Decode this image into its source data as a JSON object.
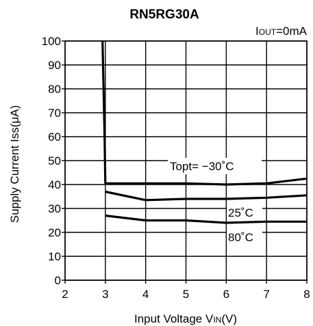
{
  "chart_data": {
    "type": "line",
    "title": "RN5RG30A",
    "condition": {
      "main": "I",
      "sub": "OUT",
      "rest": "=0mA"
    },
    "xlabel": {
      "main": "Input Voltage V",
      "sub": "IN",
      "rest": "(V)"
    },
    "ylabel": "Supply Current Iss(μA)",
    "xlim": [
      2,
      8
    ],
    "ylim": [
      0,
      100
    ],
    "x_ticks": [
      2,
      3,
      4,
      5,
      6,
      7,
      8
    ],
    "y_ticks": [
      0,
      10,
      20,
      30,
      40,
      50,
      60,
      70,
      80,
      90,
      100
    ],
    "grid": true,
    "series": [
      {
        "name": "Topt= −30˚C",
        "x": [
          2.93,
          2.98,
          3.0,
          4.0,
          5.0,
          6.0,
          7.0,
          8.0
        ],
        "y": [
          100,
          60,
          40.5,
          40.5,
          40.5,
          40,
          40.5,
          42.5
        ]
      },
      {
        "name": "25˚C",
        "x": [
          3.0,
          4.0,
          5.0,
          6.0,
          7.0,
          8.0
        ],
        "y": [
          37,
          33.5,
          34,
          34,
          34.5,
          35.5
        ]
      },
      {
        "name": "80˚C",
        "x": [
          3.0,
          4.0,
          5.0,
          6.0,
          7.0,
          8.0
        ],
        "y": [
          27,
          25,
          25,
          24,
          24.5,
          24.5
        ]
      }
    ],
    "annotations": [
      {
        "text": "Topt= −30˚C",
        "series": 0
      },
      {
        "text": "25˚C",
        "series": 1
      },
      {
        "text": "80˚C",
        "series": 2
      }
    ]
  }
}
